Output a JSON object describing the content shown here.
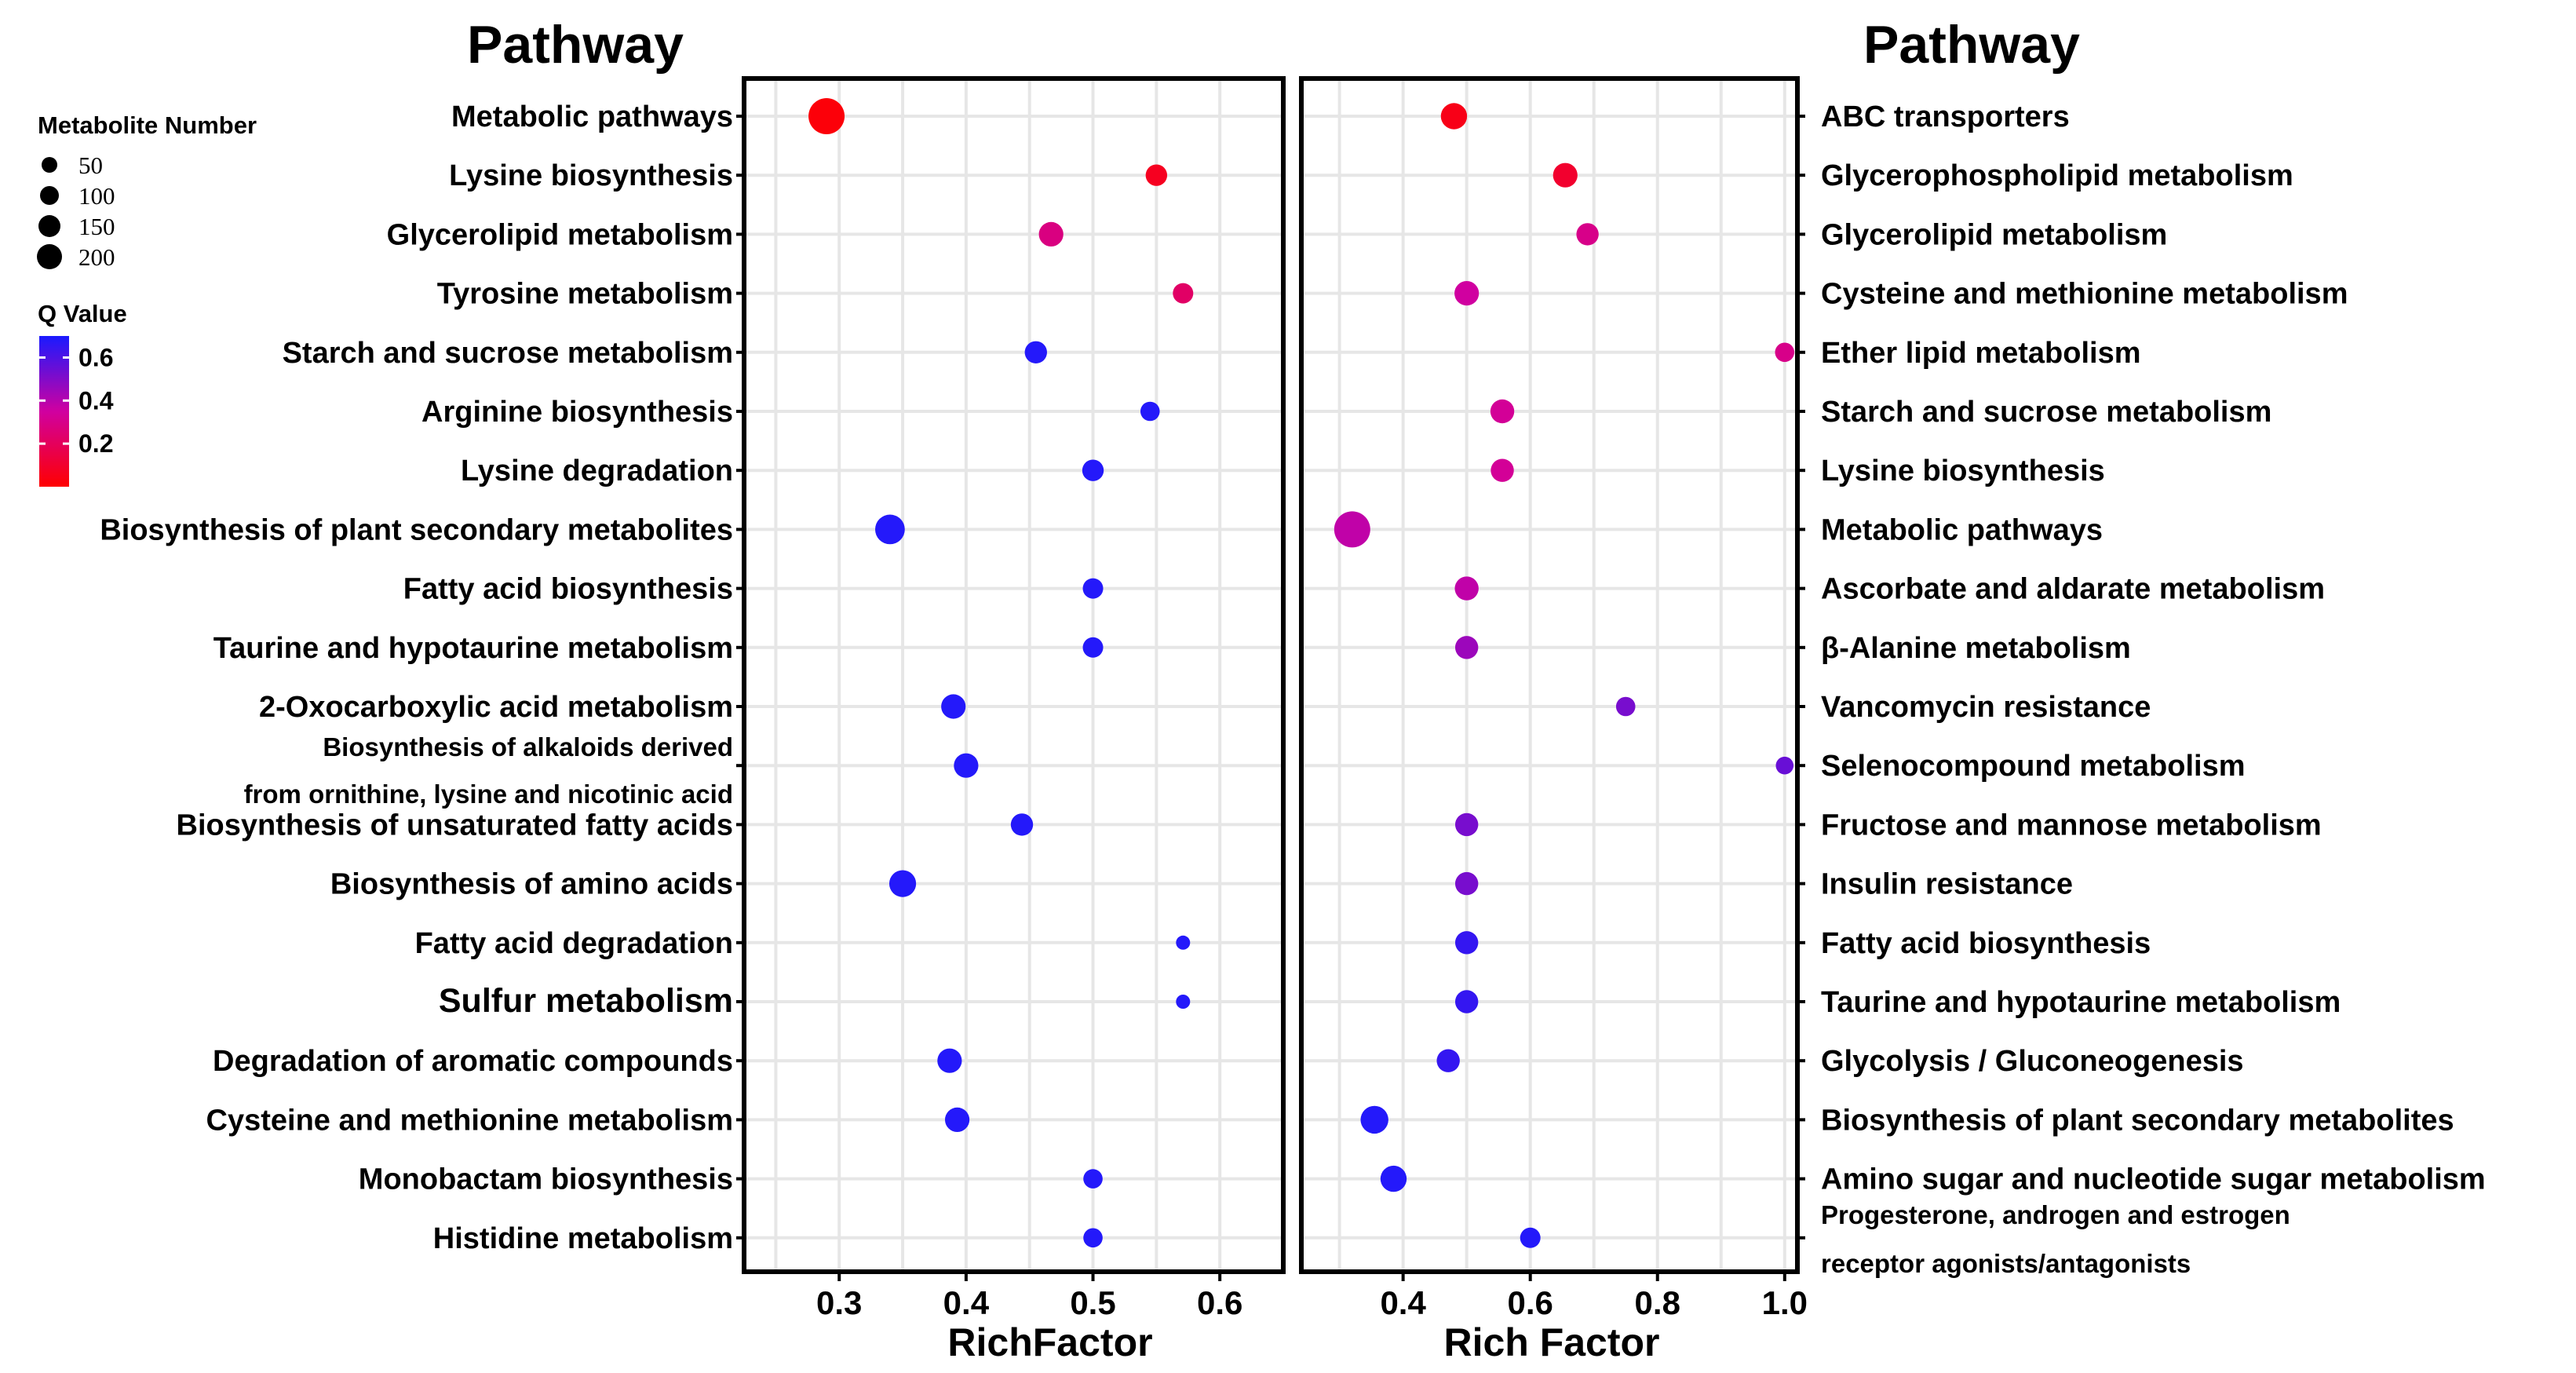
{
  "colors": {
    "low": "#ff0000",
    "mid": "#d000a0",
    "high": "#1a1aff",
    "grid": "#e6e6e6",
    "border": "#000000"
  },
  "chart_data": [
    {
      "type": "scatter",
      "title": "Pathway",
      "xlabel": "RichFactor",
      "xlim": [
        0.225,
        0.65
      ],
      "xticks": [
        0.3,
        0.4,
        0.5,
        0.6
      ],
      "xtick_labels": [
        "0.3",
        "0.4",
        "0.5",
        "0.6"
      ],
      "points": [
        {
          "pathway": "Metabolic pathways",
          "rich_factor": 0.29,
          "metabolite_number": 200,
          "q_value": 0.02
        },
        {
          "pathway": "Lysine biosynthesis",
          "rich_factor": 0.55,
          "metabolite_number": 40,
          "q_value": 0.07
        },
        {
          "pathway": "Glycerolipid metabolism",
          "rich_factor": 0.467,
          "metabolite_number": 60,
          "q_value": 0.28
        },
        {
          "pathway": "Tyrosine metabolism",
          "rich_factor": 0.571,
          "metabolite_number": 35,
          "q_value": 0.22
        },
        {
          "pathway": "Starch and sucrose metabolism",
          "rich_factor": 0.455,
          "metabolite_number": 45,
          "q_value": 0.68
        },
        {
          "pathway": "Arginine biosynthesis",
          "rich_factor": 0.545,
          "metabolite_number": 30,
          "q_value": 0.68
        },
        {
          "pathway": "Lysine degradation",
          "rich_factor": 0.5,
          "metabolite_number": 40,
          "q_value": 0.68
        },
        {
          "pathway": "Biosynthesis of plant secondary metabolites",
          "rich_factor": 0.34,
          "metabolite_number": 110,
          "q_value": 0.68
        },
        {
          "pathway": "Fatty acid biosynthesis",
          "rich_factor": 0.5,
          "metabolite_number": 35,
          "q_value": 0.68
        },
        {
          "pathway": "Taurine and hypotaurine metabolism",
          "rich_factor": 0.5,
          "metabolite_number": 35,
          "q_value": 0.68
        },
        {
          "pathway": "2-Oxocarboxylic acid metabolism",
          "rich_factor": 0.39,
          "metabolite_number": 60,
          "q_value": 0.68
        },
        {
          "pathway": "Biosynthesis of alkaloids derived from ornithine, lysine and nicotinic acid",
          "rich_factor": 0.4,
          "metabolite_number": 60,
          "q_value": 0.68
        },
        {
          "pathway": "Biosynthesis of unsaturated fatty acids",
          "rich_factor": 0.444,
          "metabolite_number": 45,
          "q_value": 0.68
        },
        {
          "pathway": "Biosynthesis of amino acids",
          "rich_factor": 0.35,
          "metabolite_number": 80,
          "q_value": 0.68
        },
        {
          "pathway": "Fatty acid degradation",
          "rich_factor": 0.571,
          "metabolite_number": 20,
          "q_value": 0.68
        },
        {
          "pathway": "Sulfur metabolism",
          "rich_factor": 0.571,
          "metabolite_number": 20,
          "q_value": 0.68
        },
        {
          "pathway": "Degradation of aromatic compounds",
          "rich_factor": 0.387,
          "metabolite_number": 60,
          "q_value": 0.68
        },
        {
          "pathway": "Cysteine and methionine metabolism",
          "rich_factor": 0.393,
          "metabolite_number": 60,
          "q_value": 0.68
        },
        {
          "pathway": "Monobactam biosynthesis",
          "rich_factor": 0.5,
          "metabolite_number": 30,
          "q_value": 0.68
        },
        {
          "pathway": "Histidine metabolism",
          "rich_factor": 0.5,
          "metabolite_number": 30,
          "q_value": 0.68
        }
      ]
    },
    {
      "type": "scatter",
      "title": "Pathway",
      "xlabel": "Rich Factor",
      "xlim": [
        0.24,
        1.02
      ],
      "xticks": [
        0.4,
        0.6,
        0.8,
        1.0
      ],
      "xtick_labels": [
        "0.4",
        "0.6",
        "0.8",
        "1.0"
      ],
      "points": [
        {
          "pathway": "ABC transporters",
          "rich_factor": 0.48,
          "metabolite_number": 75,
          "q_value": 0.05
        },
        {
          "pathway": "Glycerophospholipid metabolism",
          "rich_factor": 0.655,
          "metabolite_number": 60,
          "q_value": 0.1
        },
        {
          "pathway": "Glycerolipid metabolism",
          "rich_factor": 0.69,
          "metabolite_number": 45,
          "q_value": 0.3
        },
        {
          "pathway": "Cysteine and methionine metabolism",
          "rich_factor": 0.5,
          "metabolite_number": 60,
          "q_value": 0.35
        },
        {
          "pathway": "Ether lipid metabolism",
          "rich_factor": 1.0,
          "metabolite_number": 30,
          "q_value": 0.3
        },
        {
          "pathway": "Starch and sucrose metabolism",
          "rich_factor": 0.556,
          "metabolite_number": 55,
          "q_value": 0.33
        },
        {
          "pathway": "Lysine biosynthesis",
          "rich_factor": 0.556,
          "metabolite_number": 50,
          "q_value": 0.33
        },
        {
          "pathway": "Metabolic pathways",
          "rich_factor": 0.32,
          "metabolite_number": 200,
          "q_value": 0.38
        },
        {
          "pathway": "Ascorbate and aldarate metabolism",
          "rich_factor": 0.5,
          "metabolite_number": 55,
          "q_value": 0.38
        },
        {
          "pathway": "β-Alanine metabolism",
          "rich_factor": 0.5,
          "metabolite_number": 50,
          "q_value": 0.45
        },
        {
          "pathway": "Vancomycin resistance",
          "rich_factor": 0.75,
          "metabolite_number": 30,
          "q_value": 0.52
        },
        {
          "pathway": "Selenocompound metabolism",
          "rich_factor": 1.0,
          "metabolite_number": 25,
          "q_value": 0.55
        },
        {
          "pathway": "Fructose and mannose metabolism",
          "rich_factor": 0.5,
          "metabolite_number": 50,
          "q_value": 0.52
        },
        {
          "pathway": "Insulin resistance",
          "rich_factor": 0.5,
          "metabolite_number": 50,
          "q_value": 0.52
        },
        {
          "pathway": "Fatty acid biosynthesis",
          "rich_factor": 0.5,
          "metabolite_number": 50,
          "q_value": 0.65
        },
        {
          "pathway": "Taurine and hypotaurine metabolism",
          "rich_factor": 0.5,
          "metabolite_number": 50,
          "q_value": 0.65
        },
        {
          "pathway": "Glycolysis / Gluconeogenesis",
          "rich_factor": 0.471,
          "metabolite_number": 50,
          "q_value": 0.65
        },
        {
          "pathway": "Biosynthesis of plant secondary metabolites",
          "rich_factor": 0.355,
          "metabolite_number": 90,
          "q_value": 0.68
        },
        {
          "pathway": "Amino sugar and nucleotide sugar metabolism",
          "rich_factor": 0.385,
          "metabolite_number": 75,
          "q_value": 0.68
        },
        {
          "pathway": "Progesterone, androgen and estrogen receptor agonists/antagonists",
          "rich_factor": 0.6,
          "metabolite_number": 35,
          "q_value": 0.68
        }
      ]
    }
  ],
  "legend": {
    "size_title": "Metabolite Number",
    "size_values": [
      50,
      100,
      150,
      200
    ],
    "color_title": "Q Value",
    "color_ticks": [
      "0.6",
      "0.4",
      "0.2"
    ],
    "color_tick_values": [
      0.6,
      0.4,
      0.2
    ],
    "q_range": [
      0.0,
      0.7
    ]
  }
}
